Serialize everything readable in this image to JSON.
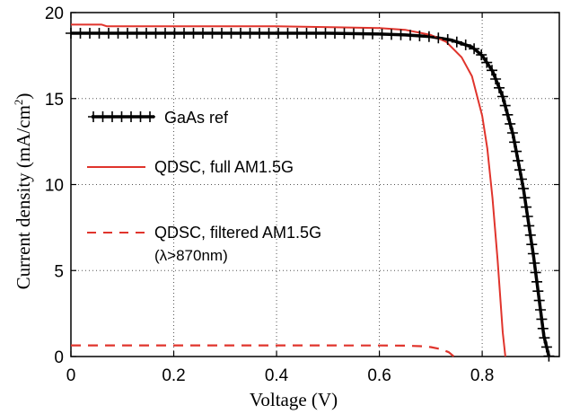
{
  "chart_data": {
    "type": "line",
    "xlabel": "Voltage (V)",
    "ylabel_main": "Current density (mA/cm",
    "ylabel_sup": "2",
    "ylabel_end": ")",
    "xlim": [
      0,
      0.95
    ],
    "ylim": [
      0,
      20
    ],
    "xticks": [
      0,
      0.2,
      0.4,
      0.6,
      0.8
    ],
    "yticks": [
      0,
      5,
      10,
      15,
      20
    ],
    "x_tick_labels": [
      "0",
      "0.2",
      "0.4",
      "0.6",
      "0.8"
    ],
    "y_tick_labels": [
      "0",
      "5",
      "10",
      "15",
      "20"
    ],
    "grid": "dotted",
    "legend_placement": "left",
    "series": [
      {
        "name": "GaAs ref",
        "style": "solid-with-plus-markers",
        "color": "#000000",
        "x": [
          0,
          0.1,
          0.2,
          0.3,
          0.4,
          0.5,
          0.6,
          0.65,
          0.7,
          0.74,
          0.78,
          0.8,
          0.82,
          0.84,
          0.86,
          0.88,
          0.9,
          0.91,
          0.92,
          0.93
        ],
        "y": [
          18.8,
          18.8,
          18.8,
          18.8,
          18.8,
          18.8,
          18.75,
          18.7,
          18.6,
          18.4,
          18.0,
          17.5,
          16.6,
          15.1,
          12.9,
          9.8,
          5.8,
          3.5,
          1.2,
          0.0
        ]
      },
      {
        "name": "QDSC, full AM1.5G",
        "style": "solid",
        "color": "#e0342c",
        "x": [
          0,
          0.06,
          0.07,
          0.2,
          0.4,
          0.6,
          0.65,
          0.7,
          0.73,
          0.76,
          0.78,
          0.8,
          0.81,
          0.82,
          0.83,
          0.84,
          0.845
        ],
        "y": [
          19.3,
          19.3,
          19.2,
          19.2,
          19.2,
          19.1,
          19.0,
          18.7,
          18.3,
          17.4,
          16.3,
          14.0,
          12.1,
          9.2,
          5.6,
          1.4,
          0.0
        ]
      },
      {
        "name": "QDSC, filtered AM1.5G",
        "name_line2": "(λ>870nm)",
        "style": "dashed",
        "color": "#e0342c",
        "x": [
          0,
          0.2,
          0.4,
          0.6,
          0.65,
          0.68,
          0.7,
          0.72,
          0.735,
          0.745
        ],
        "y": [
          0.65,
          0.65,
          0.65,
          0.64,
          0.63,
          0.6,
          0.55,
          0.43,
          0.25,
          0.0
        ]
      }
    ]
  }
}
